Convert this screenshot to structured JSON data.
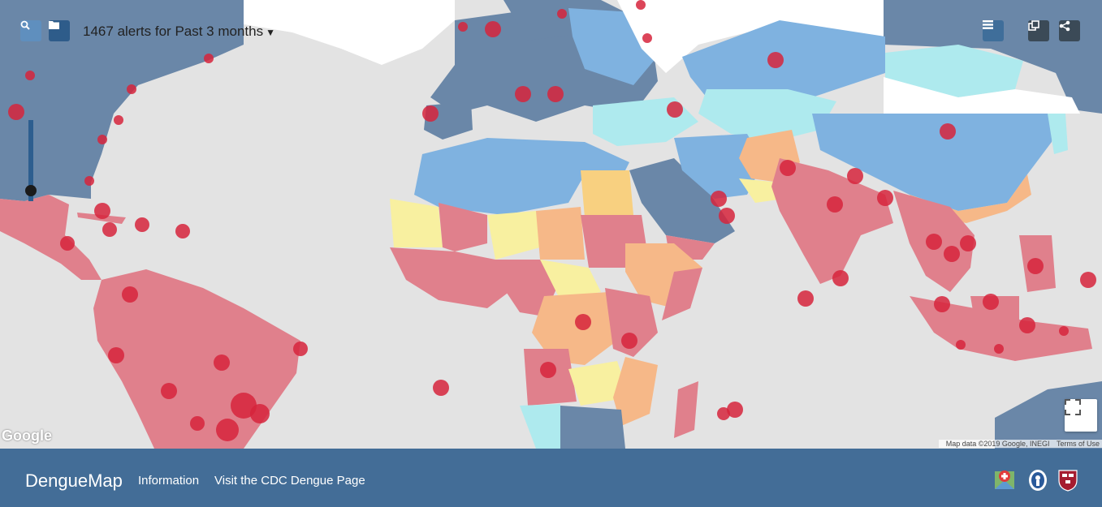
{
  "toolbar": {
    "alert_count": "1467",
    "alerts_text": "alerts for",
    "period": "Past 3 months",
    "search_icon": "search-icon",
    "folder_icon": "folder-icon",
    "list_icon": "list-icon",
    "layers_icon": "layers-icon",
    "share_icon": "share-icon"
  },
  "map": {
    "provider_logo": "Google",
    "attribution": "Map data ©2019 Google, INEGI",
    "terms": "Terms of Use",
    "fullscreen_icon": "fullscreen-icon"
  },
  "footer": {
    "brand": "DengueMap",
    "links": [
      "Information",
      "Visit the CDC Dengue Page"
    ],
    "partner_logos": [
      "healthmap-logo",
      "cdc-logo",
      "harvard-logo"
    ]
  },
  "colors": {
    "high": "#e0808c",
    "medium": "#f6b888",
    "low": "#f8f0a0",
    "no_risk_dark": "#6a87a8",
    "no_risk_mid": "#7fb2e0",
    "no_risk_light": "#aeeaee",
    "alert_dot": "#d6243c",
    "footer": "#376491"
  }
}
